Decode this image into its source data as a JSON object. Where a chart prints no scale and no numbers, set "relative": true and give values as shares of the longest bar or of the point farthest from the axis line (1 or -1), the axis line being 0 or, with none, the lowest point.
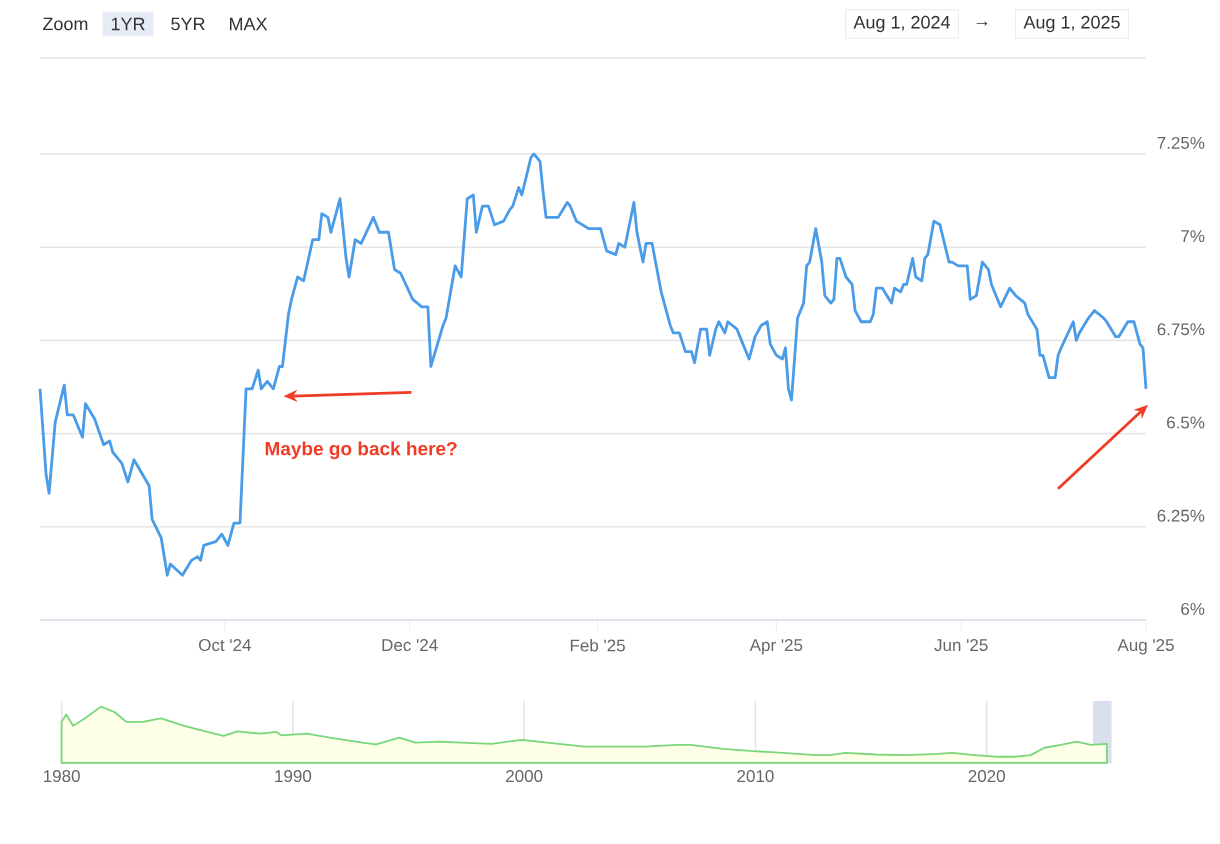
{
  "chart_data": [
    {
      "type": "line",
      "color": "#4a9be8",
      "marker": "none",
      "line_style": "solid",
      "grid": "y",
      "xlim": [
        "2024-08-01",
        "2025-08-01"
      ],
      "xticks": [
        {
          "value": "2024-10-01",
          "label": "Oct '24"
        },
        {
          "value": "2024-12-01",
          "label": "Dec '24"
        },
        {
          "value": "2025-02-01",
          "label": "Feb '25"
        },
        {
          "value": "2025-04-01",
          "label": "Apr '25"
        },
        {
          "value": "2025-06-01",
          "label": "Jun '25"
        },
        {
          "value": "2025-08-01",
          "label": "Aug '25"
        }
      ],
      "ylim": [
        6,
        7.25
      ],
      "yticks": [
        {
          "value": 6,
          "label": "6%"
        },
        {
          "value": 6.25,
          "label": "6.25%"
        },
        {
          "value": 6.5,
          "label": "6.5%"
        },
        {
          "value": 6.75,
          "label": "6.75%"
        },
        {
          "value": 7,
          "label": "7%"
        },
        {
          "value": 7.25,
          "label": "7.25%"
        }
      ],
      "annotations": [
        "Zoom",
        "1YR",
        "5YR",
        "MAX",
        "Aug 1, 2024",
        "→",
        "Aug 1, 2025",
        {
          "text": "Maybe go back here?",
          "x": "2024-10-19",
          "y": 6.6
        }
      ],
      "x": [
        "2024-08-01",
        "2024-08-03",
        "2024-08-04",
        "2024-08-06",
        "2024-08-09",
        "2024-08-10",
        "2024-08-12",
        "2024-08-15",
        "2024-08-16",
        "2024-08-19",
        "2024-08-22",
        "2024-08-24",
        "2024-08-25",
        "2024-08-28",
        "2024-08-30",
        "2024-09-01",
        "2024-09-06",
        "2024-09-07",
        "2024-09-10",
        "2024-09-12",
        "2024-09-13",
        "2024-09-17",
        "2024-09-20",
        "2024-09-22",
        "2024-09-23",
        "2024-09-24",
        "2024-09-28",
        "2024-09-30",
        "2024-10-02",
        "2024-10-04",
        "2024-10-06",
        "2024-10-08",
        "2024-10-10",
        "2024-10-12",
        "2024-10-13",
        "2024-10-15",
        "2024-10-17",
        "2024-10-19",
        "2024-10-20",
        "2024-10-22",
        "2024-10-23",
        "2024-10-25",
        "2024-10-27",
        "2024-10-30",
        "2024-11-01",
        "2024-11-02",
        "2024-11-04",
        "2024-11-05",
        "2024-11-08",
        "2024-11-10",
        "2024-11-11",
        "2024-11-13",
        "2024-11-15",
        "2024-11-19",
        "2024-11-21",
        "2024-11-24",
        "2024-11-26",
        "2024-11-28",
        "2024-12-02",
        "2024-12-05",
        "2024-12-07",
        "2024-12-08",
        "2024-12-12",
        "2024-12-13",
        "2024-12-16",
        "2024-12-18",
        "2024-12-20",
        "2024-12-22",
        "2024-12-23",
        "2024-12-25",
        "2024-12-27",
        "2024-12-29",
        "2025-01-01",
        "2025-01-03",
        "2025-01-04",
        "2025-01-06",
        "2025-01-07",
        "2025-01-10",
        "2025-01-11",
        "2025-01-13",
        "2025-01-14",
        "2025-01-15",
        "2025-01-19",
        "2025-01-22",
        "2025-01-23",
        "2025-01-25",
        "2025-01-29",
        "2025-02-02",
        "2025-02-04",
        "2025-02-07",
        "2025-02-08",
        "2025-02-10",
        "2025-02-13",
        "2025-02-14",
        "2025-02-16",
        "2025-02-17",
        "2025-02-19",
        "2025-02-22",
        "2025-02-23",
        "2025-02-25",
        "2025-02-26",
        "2025-02-28",
        "2025-03-02",
        "2025-03-04",
        "2025-03-05",
        "2025-03-07",
        "2025-03-09",
        "2025-03-10",
        "2025-03-12",
        "2025-03-13",
        "2025-03-15",
        "2025-03-16",
        "2025-03-19",
        "2025-03-21",
        "2025-03-23",
        "2025-03-25",
        "2025-03-27",
        "2025-03-29",
        "2025-03-30",
        "2025-04-01",
        "2025-04-03",
        "2025-04-04",
        "2025-04-05",
        "2025-04-06",
        "2025-04-08",
        "2025-04-10",
        "2025-04-11",
        "2025-04-12",
        "2025-04-14",
        "2025-04-16",
        "2025-04-17",
        "2025-04-19",
        "2025-04-20",
        "2025-04-21",
        "2025-04-22",
        "2025-04-24",
        "2025-04-26",
        "2025-04-27",
        "2025-04-29",
        "2025-05-02",
        "2025-05-03",
        "2025-05-04",
        "2025-05-06",
        "2025-05-09",
        "2025-05-10",
        "2025-05-12",
        "2025-05-13",
        "2025-05-14",
        "2025-05-16",
        "2025-05-17",
        "2025-05-19",
        "2025-05-20",
        "2025-05-21",
        "2025-05-23",
        "2025-05-25",
        "2025-05-28",
        "2025-05-29",
        "2025-05-31",
        "2025-06-03",
        "2025-06-04",
        "2025-06-06",
        "2025-06-08",
        "2025-06-10",
        "2025-06-11",
        "2025-06-14",
        "2025-06-17",
        "2025-06-19",
        "2025-06-22",
        "2025-06-23",
        "2025-06-26",
        "2025-06-27",
        "2025-06-28",
        "2025-06-30",
        "2025-07-02",
        "2025-07-03",
        "2025-07-04",
        "2025-07-08",
        "2025-07-09",
        "2025-07-10",
        "2025-07-13",
        "2025-07-15",
        "2025-07-18",
        "2025-07-19",
        "2025-07-22",
        "2025-07-23",
        "2025-07-26",
        "2025-07-28",
        "2025-07-30",
        "2025-07-31",
        "2025-08-01"
      ],
      "values": [
        6.62,
        6.39,
        6.34,
        6.53,
        6.63,
        6.55,
        6.55,
        6.49,
        6.58,
        6.54,
        6.47,
        6.48,
        6.45,
        6.42,
        6.37,
        6.43,
        6.36,
        6.27,
        6.22,
        6.12,
        6.15,
        6.12,
        6.16,
        6.17,
        6.16,
        6.2,
        6.21,
        6.23,
        6.2,
        6.26,
        6.26,
        6.62,
        6.62,
        6.67,
        6.62,
        6.64,
        6.62,
        6.68,
        6.68,
        6.82,
        6.86,
        6.92,
        6.91,
        7.02,
        7.02,
        7.09,
        7.08,
        7.04,
        7.13,
        6.97,
        6.92,
        7.02,
        7.01,
        7.08,
        7.04,
        7.04,
        6.94,
        6.93,
        6.86,
        6.84,
        6.84,
        6.68,
        6.79,
        6.81,
        6.95,
        6.92,
        7.13,
        7.14,
        7.04,
        7.11,
        7.11,
        7.06,
        7.07,
        7.1,
        7.11,
        7.16,
        7.14,
        7.24,
        7.25,
        7.23,
        7.15,
        7.08,
        7.08,
        7.12,
        7.11,
        7.07,
        7.05,
        7.05,
        6.99,
        6.98,
        7.01,
        7.0,
        7.12,
        7.04,
        6.96,
        7.01,
        7.01,
        6.88,
        6.85,
        6.79,
        6.77,
        6.77,
        6.72,
        6.72,
        6.69,
        6.78,
        6.78,
        6.71,
        6.78,
        6.8,
        6.77,
        6.8,
        6.78,
        6.74,
        6.7,
        6.76,
        6.79,
        6.8,
        6.74,
        6.71,
        6.7,
        6.73,
        6.62,
        6.59,
        6.81,
        6.85,
        6.95,
        6.96,
        7.05,
        6.96,
        6.87,
        6.85,
        6.86,
        6.97,
        6.97,
        6.92,
        6.9,
        6.83,
        6.8,
        6.8,
        6.82,
        6.89,
        6.89,
        6.85,
        6.89,
        6.88,
        6.9,
        6.9,
        6.97,
        6.92,
        6.91,
        6.97,
        6.98,
        7.07,
        7.06,
        6.96,
        6.96,
        6.95,
        6.95,
        6.86,
        6.87,
        6.96,
        6.94,
        6.9,
        6.84,
        6.89,
        6.87,
        6.85,
        6.82,
        6.78,
        6.71,
        6.71,
        6.65,
        6.65,
        6.71,
        6.73,
        6.8,
        6.75,
        6.77,
        6.81,
        6.83,
        6.81,
        6.8,
        6.76,
        6.76,
        6.8,
        6.8,
        6.74,
        6.73,
        6.62
      ]
    },
    {
      "type": "area",
      "relative": true,
      "color": "#7ad67a",
      "grid": "x",
      "tick_labels": "x",
      "xlim": [
        1980,
        2025.4
      ],
      "xticks": [
        1980,
        1990,
        2000,
        2010,
        2020
      ],
      "bands": [
        {
          "axis": "x",
          "from": 2024.6,
          "to": 2025.4,
          "color": "#d8e0ee"
        }
      ],
      "x": [
        1980.0,
        1980.2,
        1980.5,
        1981.0,
        1981.7,
        1982.3,
        1982.8,
        1983.5,
        1984.3,
        1985.3,
        1986.3,
        1987.0,
        1987.6,
        1988.6,
        1989.3,
        1989.5,
        1990.6,
        1991.6,
        1993.0,
        1993.6,
        1994.6,
        1995.3,
        1996.3,
        1997.3,
        1998.6,
        1999.9,
        2000.6,
        2001.9,
        2002.6,
        2003.9,
        2005.2,
        2006.6,
        2007.2,
        2008.6,
        2009.9,
        2011.2,
        2012.6,
        2013.2,
        2013.9,
        2015.2,
        2016.5,
        2017.9,
        2018.5,
        2019.5,
        2020.5,
        2021.2,
        2021.9,
        2022.5,
        2023.2,
        2023.9,
        2024.5,
        2025.2
      ],
      "values": [
        0.73,
        0.86,
        0.66,
        0.79,
        1.0,
        0.9,
        0.73,
        0.73,
        0.79,
        0.66,
        0.55,
        0.48,
        0.56,
        0.52,
        0.55,
        0.49,
        0.52,
        0.45,
        0.36,
        0.33,
        0.45,
        0.36,
        0.38,
        0.36,
        0.34,
        0.41,
        0.38,
        0.32,
        0.29,
        0.29,
        0.29,
        0.32,
        0.32,
        0.25,
        0.21,
        0.18,
        0.14,
        0.14,
        0.18,
        0.15,
        0.14,
        0.16,
        0.18,
        0.14,
        0.11,
        0.11,
        0.14,
        0.27,
        0.32,
        0.38,
        0.32,
        0.34
      ]
    }
  ]
}
